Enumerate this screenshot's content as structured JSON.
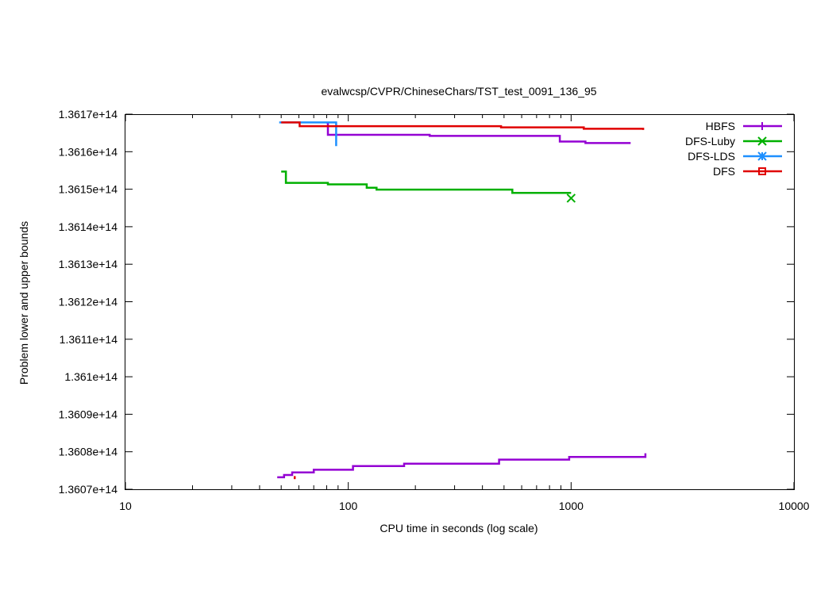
{
  "chart_data": {
    "type": "line",
    "title": "evalwcsp/CVPR/ChineseChars/TST_test_0091_136_95",
    "xlabel": "CPU time in seconds (log scale)",
    "ylabel": "Problem lower and upper bounds",
    "xscale": "log",
    "xlim": [
      10,
      10000
    ],
    "ylim": [
      136070000000000,
      136170000000000
    ],
    "x_ticks": [
      10,
      100,
      1000,
      10000
    ],
    "x_tick_labels": [
      "10",
      "100",
      "1000",
      "10000"
    ],
    "y_ticks": [
      136070000000000,
      136080000000000,
      136090000000000,
      136100000000000,
      136110000000000,
      136120000000000,
      136130000000000,
      136140000000000,
      136150000000000,
      136160000000000,
      136170000000000
    ],
    "y_tick_labels": [
      "1.3607e+14",
      "1.3608e+14",
      "1.3609e+14",
      "1.361e+14",
      "1.3611e+14",
      "1.3612e+14",
      "1.3613e+14",
      "1.3614e+14",
      "1.3615e+14",
      "1.3616e+14",
      "1.3617e+14"
    ],
    "grid": false,
    "legend_position": "top-right",
    "series": [
      {
        "name": "HBFS",
        "color": "#9400d3",
        "marker": "plus",
        "step": true,
        "segments": [
          {
            "role": "upper",
            "points": [
              [
                80,
                136167700000000
              ],
              [
                81,
                136164500000000
              ],
              [
                230,
                136164500000000
              ],
              [
                232,
                136164200000000
              ],
              [
                880,
                136164200000000
              ],
              [
                890,
                136162700000000
              ],
              [
                1150,
                136162700000000
              ],
              [
                1160,
                136162300000000
              ],
              [
                1850,
                136162300000000
              ]
            ]
          },
          {
            "role": "lower",
            "points": [
              [
                48,
                136073200000000
              ],
              [
                51,
                136073200000000
              ],
              [
                51.5,
                136073800000000
              ],
              [
                55,
                136073800000000
              ],
              [
                56,
                136074500000000
              ],
              [
                69,
                136074500000000
              ],
              [
                70,
                136075200000000
              ],
              [
                104,
                136075200000000
              ],
              [
                105,
                136076200000000
              ],
              [
                176,
                136076200000000
              ],
              [
                178,
                136076800000000
              ],
              [
                470,
                136076800000000
              ],
              [
                475,
                136077900000000
              ],
              [
                970,
                136077900000000
              ],
              [
                980,
                136078600000000
              ],
              [
                2150,
                136078600000000
              ],
              [
                2155,
                136079600000000
              ]
            ]
          }
        ],
        "markers": []
      },
      {
        "name": "DFS-Luby",
        "color": "#00b000",
        "marker": "x",
        "step": true,
        "segments": [
          {
            "role": "upper",
            "points": [
              [
                50,
                136154700000000
              ],
              [
                52,
                136154700000000
              ],
              [
                52.5,
                136151700000000
              ],
              [
                80,
                136151700000000
              ],
              [
                81,
                136151300000000
              ],
              [
                120,
                136151300000000
              ],
              [
                121,
                136150400000000
              ],
              [
                133,
                136150400000000
              ],
              [
                134,
                136149900000000
              ],
              [
                540,
                136149900000000
              ],
              [
                545,
                136149000000000
              ],
              [
                1000,
                136149000000000
              ]
            ]
          }
        ],
        "markers": [
          [
            1000,
            136147600000000
          ]
        ]
      },
      {
        "name": "DFS-LDS",
        "color": "#1e90ff",
        "marker": "star",
        "step": true,
        "segments": [
          {
            "role": "upper",
            "points": [
              [
                49,
                136167800000000
              ],
              [
                88,
                136167800000000
              ],
              [
                88.2,
                136161500000000
              ]
            ]
          }
        ],
        "markers": []
      },
      {
        "name": "DFS",
        "color": "#e00000",
        "marker": "square",
        "step": true,
        "segments": [
          {
            "role": "upper",
            "points": [
              [
                50,
                136167800000000
              ],
              [
                60,
                136167800000000
              ],
              [
                60.5,
                136166800000000
              ],
              [
                480,
                136166800000000
              ],
              [
                485,
                136166500000000
              ],
              [
                1130,
                136166500000000
              ],
              [
                1140,
                136166100000000
              ],
              [
                2100,
                136166100000000
              ],
              [
                2105,
                136165800000000
              ]
            ]
          },
          {
            "role": "lower",
            "points": [
              [
                57.5,
                136073500000000
              ],
              [
                57.5,
                136072700000000
              ]
            ]
          }
        ],
        "markers": []
      }
    ]
  }
}
